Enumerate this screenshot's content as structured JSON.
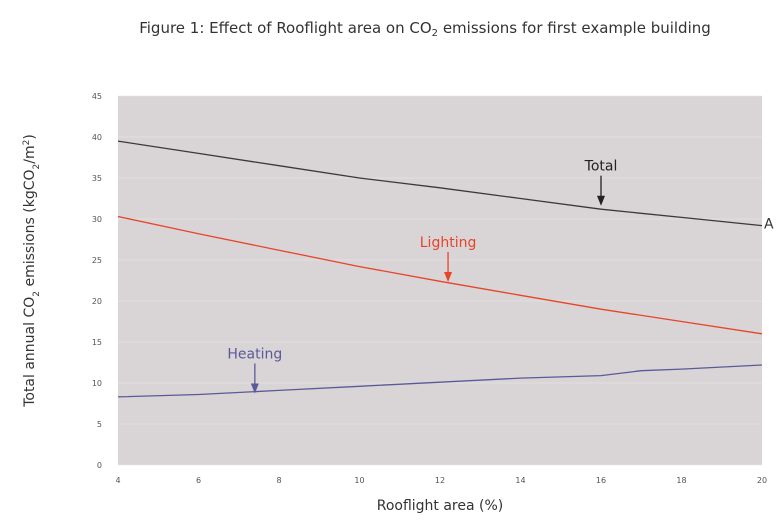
{
  "chart_data": {
    "type": "line",
    "title_parts": [
      "Figure 1: Effect of Rooflight area on CO",
      "2",
      " emissions for first example building"
    ],
    "xlabel": "Rooflight area (%)",
    "ylabel_parts": [
      "Total annual CO",
      "2",
      " emissions (kgCO",
      "2",
      "/m",
      "2",
      ")"
    ],
    "xlim": [
      4,
      20
    ],
    "ylim": [
      0,
      45
    ],
    "xticks": [
      "4",
      "6",
      "8",
      "10",
      "12",
      "14",
      "16",
      "18",
      "20"
    ],
    "yticks": [
      "0",
      "5",
      "10",
      "15",
      "20",
      "25",
      "30",
      "35",
      "40",
      "45"
    ],
    "plot_background": "#d9d4d6",
    "series": [
      {
        "name": "Total",
        "color": "#3a3a3a",
        "points": [
          [
            4,
            39.5
          ],
          [
            6,
            38
          ],
          [
            8,
            36.5
          ],
          [
            10,
            35
          ],
          [
            12,
            33.8
          ],
          [
            14,
            32.5
          ],
          [
            16,
            31.2
          ],
          [
            18,
            30.2
          ],
          [
            20,
            29.2
          ]
        ]
      },
      {
        "name": "Lighting",
        "color": "#e8442a",
        "points": [
          [
            4,
            30.3
          ],
          [
            6,
            28.2
          ],
          [
            8,
            26.2
          ],
          [
            10,
            24.2
          ],
          [
            12,
            22.4
          ],
          [
            14,
            20.7
          ],
          [
            16,
            19
          ],
          [
            18,
            17.5
          ],
          [
            20,
            16
          ]
        ]
      },
      {
        "name": "Heating",
        "color": "#5a5a99",
        "points": [
          [
            4,
            8.3
          ],
          [
            6,
            8.6
          ],
          [
            8,
            9.1
          ],
          [
            10,
            9.6
          ],
          [
            12,
            10.1
          ],
          [
            14,
            10.6
          ],
          [
            16,
            10.9
          ],
          [
            17,
            11.5
          ],
          [
            18,
            11.7
          ],
          [
            20,
            12.2
          ]
        ]
      }
    ],
    "annotations": [
      {
        "label": "Total",
        "x": 16,
        "y": 31.5,
        "color": "#222222"
      },
      {
        "label": "Lighting",
        "x": 12.2,
        "y": 22.2,
        "color": "#e8442a"
      },
      {
        "label": "Heating",
        "x": 7.4,
        "y": 8.6,
        "color": "#5a5a99"
      }
    ],
    "edge_label": "A"
  }
}
